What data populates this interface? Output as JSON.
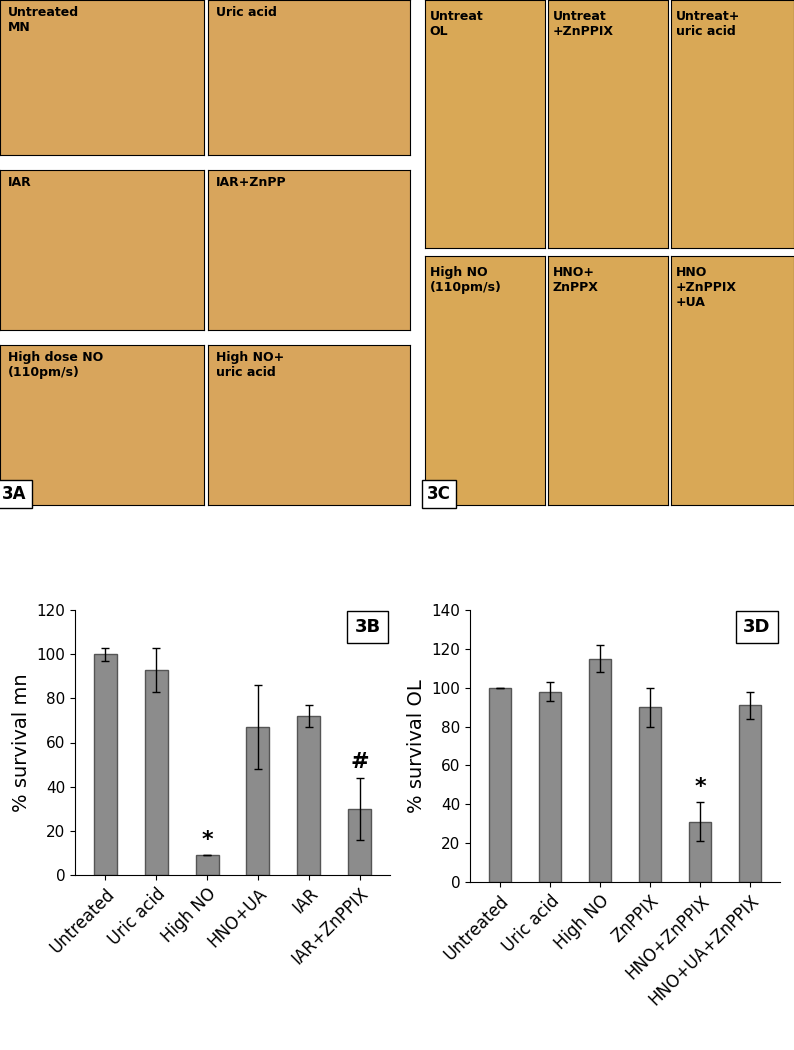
{
  "image_panels": [
    {
      "tag": "3A",
      "labels": [
        "Untreated\nMN",
        "Uric acid",
        "IAR",
        "IAR+ZnPP",
        "High dose NO\n(110pm/s)",
        "High NO+\nuric acid"
      ]
    },
    {
      "tag": "3C",
      "labels": [
        "Untreat\nOL",
        "Untreat\n+ZnPPIX",
        "Untreat+\nuric acid",
        "High NO\n(110pm/s)",
        "HNO+\nZnPPX",
        "HNO\n+ZnPPIX\n+UA"
      ]
    }
  ],
  "chart_data": [
    {
      "type": "bar",
      "tag": "3B",
      "y_label": "% survival mn",
      "categories": [
        "Untreated",
        "Uric acid",
        "High NO",
        "HNO+UA",
        "IAR",
        "IAR+ZnPPIX"
      ],
      "values": [
        100,
        93,
        9,
        67,
        72,
        30
      ],
      "errors": [
        3,
        10,
        0,
        19,
        5,
        14
      ],
      "color": "#8c8c8c",
      "ylim": [
        0,
        120
      ],
      "yticks": [
        0,
        20,
        40,
        60,
        80,
        100,
        120
      ],
      "annotations": [
        {
          "category": "High NO",
          "text": "*"
        },
        {
          "category": "IAR+ZnPPIX",
          "text": "#"
        }
      ]
    },
    {
      "type": "bar",
      "tag": "3D",
      "y_label": "% survival OL",
      "categories": [
        "Untreated",
        "Uric acid",
        "High NO",
        "ZnPPIX",
        "HNO+ZnPPIX",
        "HNO+UA+ZnPPIX"
      ],
      "values": [
        100,
        98,
        115,
        90,
        31,
        91
      ],
      "errors": [
        0,
        5,
        7,
        10,
        10,
        7
      ],
      "color": "#8c8c8c",
      "ylim": [
        0,
        140
      ],
      "yticks": [
        0,
        20,
        40,
        60,
        80,
        100,
        120,
        140
      ],
      "annotations": [
        {
          "category": "HNO+ZnPPIX",
          "text": "*"
        }
      ]
    }
  ]
}
